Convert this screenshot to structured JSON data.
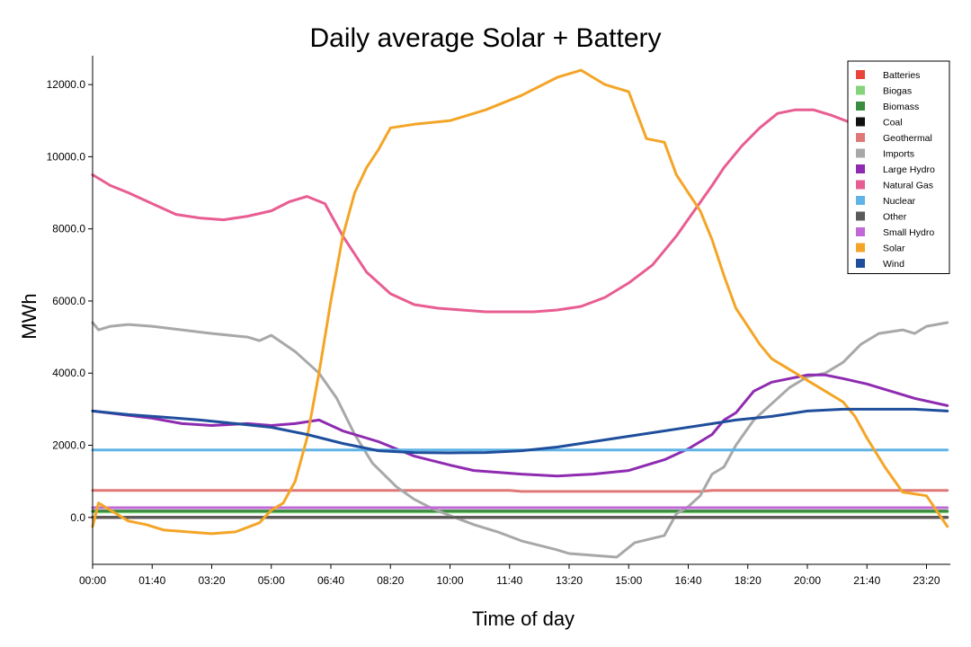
{
  "chart_data": {
    "type": "line",
    "title": "Daily average Solar + Battery",
    "xlabel": "Time of day",
    "ylabel": "MWh",
    "ylim": [
      -1300,
      12800
    ],
    "xlim": [
      0,
      1440
    ],
    "x_tick_labels": [
      "00:00",
      "01:40",
      "03:20",
      "05:00",
      "06:40",
      "08:20",
      "10:00",
      "11:40",
      "13:20",
      "15:00",
      "16:40",
      "18:20",
      "20:00",
      "21:40",
      "23:20"
    ],
    "y_tick_labels": [
      "0.0",
      "2000.0",
      "4000.0",
      "6000.0",
      "8000.0",
      "10000.0",
      "12000.0"
    ],
    "grid": false,
    "legend_position": "top-right",
    "series": [
      {
        "name": "Batteries",
        "color": "#e8443a",
        "x": [
          0,
          1435
        ],
        "values": [
          0,
          0
        ]
      },
      {
        "name": "Biogas",
        "color": "#86d37e",
        "x": [
          0,
          1435
        ],
        "values": [
          150,
          150
        ]
      },
      {
        "name": "Biomass",
        "color": "#3a8c3f",
        "x": [
          0,
          1435
        ],
        "values": [
          180,
          180
        ]
      },
      {
        "name": "Coal",
        "color": "#111111",
        "x": [
          0,
          1435
        ],
        "values": [
          0,
          0
        ]
      },
      {
        "name": "Geothermal",
        "color": "#e07878",
        "x": [
          0,
          700,
          720,
          1020,
          1040,
          1435
        ],
        "values": [
          750,
          750,
          720,
          720,
          750,
          750
        ]
      },
      {
        "name": "Imports",
        "color": "#a8a8a8",
        "x": [
          0,
          10,
          30,
          60,
          100,
          200,
          260,
          280,
          300,
          340,
          380,
          410,
          440,
          470,
          510,
          540,
          570,
          600,
          640,
          680,
          720,
          780,
          800,
          840,
          880,
          910,
          960,
          980,
          1000,
          1020,
          1040,
          1060,
          1080,
          1110,
          1150,
          1170,
          1200,
          1230,
          1260,
          1290,
          1320,
          1360,
          1380,
          1400,
          1435
        ],
        "values": [
          5400,
          5200,
          5300,
          5350,
          5300,
          5100,
          5000,
          4900,
          5050,
          4600,
          4000,
          3300,
          2300,
          1500,
          850,
          500,
          250,
          50,
          -200,
          -400,
          -650,
          -900,
          -1000,
          -1050,
          -1100,
          -700,
          -500,
          100,
          300,
          600,
          1200,
          1400,
          2000,
          2700,
          3300,
          3600,
          3900,
          4000,
          4300,
          4800,
          5100,
          5200,
          5100,
          5300,
          5400
        ]
      },
      {
        "name": "Large Hydro",
        "color": "#8e2bb0",
        "x": [
          0,
          50,
          100,
          150,
          200,
          260,
          300,
          340,
          380,
          420,
          480,
          540,
          600,
          640,
          680,
          720,
          780,
          840,
          900,
          960,
          1000,
          1020,
          1040,
          1060,
          1080,
          1110,
          1140,
          1170,
          1200,
          1230,
          1260,
          1300,
          1340,
          1380,
          1435
        ],
        "values": [
          2950,
          2850,
          2750,
          2600,
          2550,
          2600,
          2550,
          2600,
          2700,
          2400,
          2100,
          1700,
          1450,
          1300,
          1250,
          1200,
          1150,
          1200,
          1300,
          1600,
          1900,
          2100,
          2300,
          2700,
          2900,
          3500,
          3750,
          3850,
          3950,
          3950,
          3850,
          3700,
          3500,
          3300,
          3100
        ]
      },
      {
        "name": "Natural Gas",
        "color": "#e85d92",
        "x": [
          0,
          30,
          60,
          100,
          140,
          180,
          220,
          260,
          300,
          330,
          360,
          390,
          420,
          460,
          500,
          540,
          580,
          620,
          660,
          700,
          740,
          780,
          820,
          860,
          900,
          940,
          980,
          1010,
          1040,
          1060,
          1090,
          1120,
          1150,
          1180,
          1210,
          1240,
          1280,
          1320,
          1360,
          1400,
          1435
        ],
        "values": [
          9500,
          9200,
          9000,
          8700,
          8400,
          8300,
          8250,
          8350,
          8500,
          8750,
          8900,
          8700,
          7800,
          6800,
          6200,
          5900,
          5800,
          5750,
          5700,
          5700,
          5700,
          5750,
          5850,
          6100,
          6500,
          7000,
          7800,
          8500,
          9200,
          9700,
          10300,
          10800,
          11200,
          11300,
          11300,
          11150,
          10900,
          10600,
          10200,
          9900,
          9600
        ]
      },
      {
        "name": "Nuclear",
        "color": "#5fb3e6",
        "x": [
          0,
          1435
        ],
        "values": [
          1870,
          1870
        ]
      },
      {
        "name": "Other",
        "color": "#5a5a5a",
        "x": [
          0,
          1435
        ],
        "values": [
          0,
          0
        ]
      },
      {
        "name": "Small Hydro",
        "color": "#c069d6",
        "x": [
          0,
          1435
        ],
        "values": [
          270,
          270
        ]
      },
      {
        "name": "Solar",
        "color": "#f4a527",
        "x": [
          0,
          10,
          30,
          60,
          90,
          120,
          160,
          200,
          240,
          280,
          300,
          320,
          340,
          360,
          380,
          400,
          420,
          440,
          460,
          480,
          500,
          540,
          600,
          660,
          720,
          780,
          820,
          860,
          900,
          930,
          960,
          980,
          1000,
          1020,
          1040,
          1060,
          1080,
          1100,
          1120,
          1140,
          1160,
          1180,
          1200,
          1230,
          1260,
          1280,
          1300,
          1330,
          1360,
          1400,
          1435
        ],
        "values": [
          -250,
          400,
          200,
          -100,
          -200,
          -350,
          -400,
          -450,
          -400,
          -150,
          200,
          400,
          1000,
          2200,
          4000,
          6000,
          7800,
          9000,
          9700,
          10200,
          10800,
          10900,
          11000,
          11300,
          11700,
          12200,
          12400,
          12000,
          11800,
          10500,
          10400,
          9500,
          9000,
          8500,
          7700,
          6700,
          5800,
          5300,
          4800,
          4400,
          4200,
          4000,
          3800,
          3500,
          3200,
          2800,
          2200,
          1400,
          700,
          600,
          -250
        ]
      },
      {
        "name": "Wind",
        "color": "#1f4e9c",
        "x": [
          0,
          60,
          120,
          180,
          240,
          300,
          360,
          420,
          480,
          540,
          600,
          660,
          720,
          780,
          840,
          900,
          960,
          1020,
          1080,
          1140,
          1200,
          1260,
          1320,
          1380,
          1435
        ],
        "values": [
          2950,
          2850,
          2780,
          2700,
          2600,
          2500,
          2300,
          2050,
          1850,
          1800,
          1790,
          1800,
          1850,
          1950,
          2100,
          2250,
          2400,
          2550,
          2700,
          2800,
          2950,
          3000,
          3000,
          3000,
          2950
        ]
      }
    ]
  }
}
